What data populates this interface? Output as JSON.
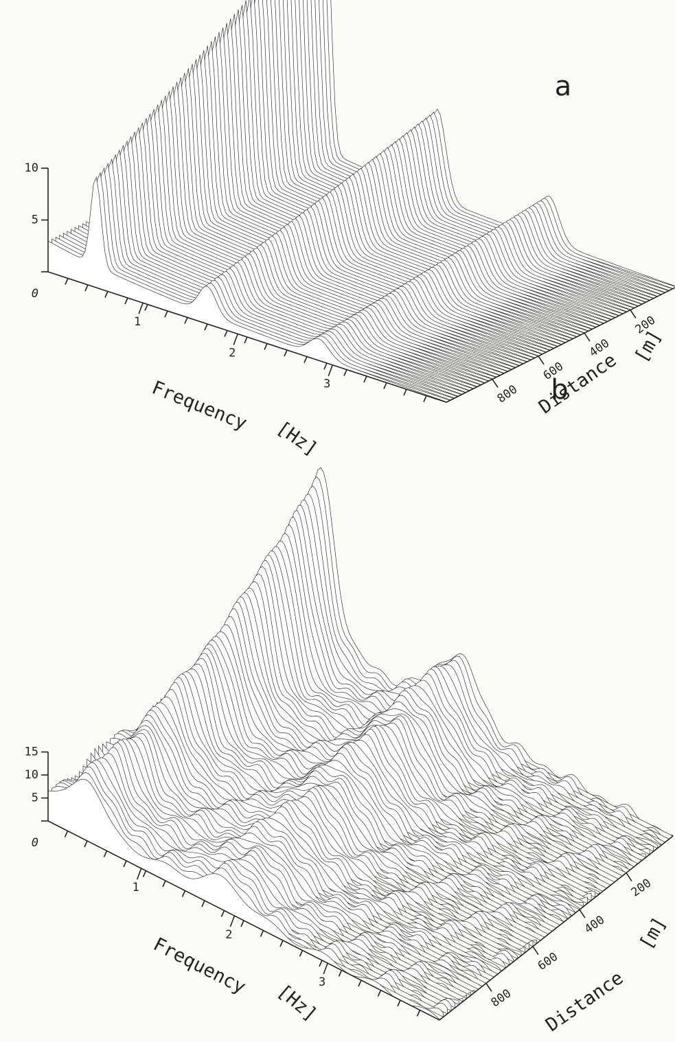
{
  "figures": [
    {
      "label": "a",
      "z_ticks": [
        0,
        5,
        10
      ],
      "frequency_title": "Frequency",
      "frequency_unit": "[Hz]",
      "frequency_ticks": [
        1,
        2,
        3
      ],
      "distance_title": "Distance",
      "distance_unit": "[m]",
      "distance_ticks": [
        200,
        400,
        600,
        800
      ]
    },
    {
      "label": "b",
      "z_ticks": [
        0,
        5,
        10,
        15
      ],
      "frequency_title": "Frequency",
      "frequency_unit": "[Hz]",
      "frequency_ticks": [
        1,
        2,
        3
      ],
      "distance_title": "Distance",
      "distance_unit": "[m]",
      "distance_ticks": [
        200,
        400,
        600,
        800
      ]
    }
  ]
}
